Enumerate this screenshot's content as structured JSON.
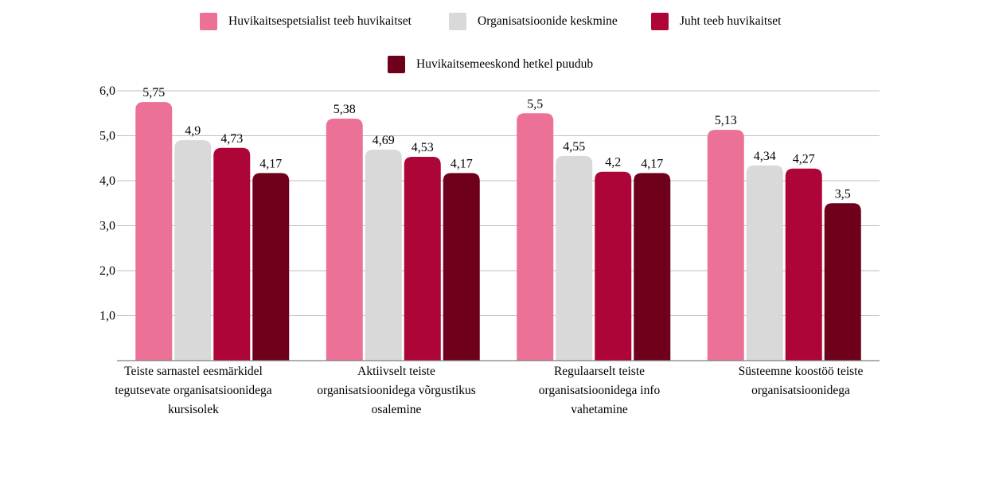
{
  "chart_data": {
    "type": "bar",
    "categories": [
      "Teiste sarnastel eesmärkidel tegutsevate organisatsioonidega kursisolek",
      "Aktiivselt teiste organisatsioonidega võrgustikus osalemine",
      "Regulaarselt teiste organisatsioonidega info vahetamine",
      "Süsteemne koostöö teiste organisatsioonidega"
    ],
    "series": [
      {
        "name": "Huvikaitsespetsialist teeb huvikaitset",
        "color": "#ec7196",
        "values": [
          5.75,
          5.38,
          5.5,
          5.13
        ],
        "labels": [
          "5,75",
          "5,38",
          "5,5",
          "5,13"
        ]
      },
      {
        "name": "Organisatsioonide keskmine",
        "color": "#d9d9d9",
        "values": [
          4.9,
          4.69,
          4.55,
          4.34
        ],
        "labels": [
          "4,9",
          "4,69",
          "4,55",
          "4,34"
        ]
      },
      {
        "name": "Juht teeb huvikaitset",
        "color": "#ad0537",
        "values": [
          4.73,
          4.53,
          4.2,
          4.27
        ],
        "labels": [
          "4,73",
          "4,53",
          "4,2",
          "4,27"
        ]
      },
      {
        "name": "Huvikaitsemeeskond hetkel puudub",
        "color": "#6f001c",
        "values": [
          4.17,
          4.17,
          4.17,
          3.5
        ],
        "labels": [
          "4,17",
          "4,17",
          "4,17",
          "3,5"
        ]
      }
    ],
    "yticks": [
      "1,0",
      "2,0",
      "3,0",
      "4,0",
      "5,0",
      "6,0"
    ],
    "ylim": [
      0,
      6
    ],
    "grid": true,
    "legend_position": "top"
  }
}
